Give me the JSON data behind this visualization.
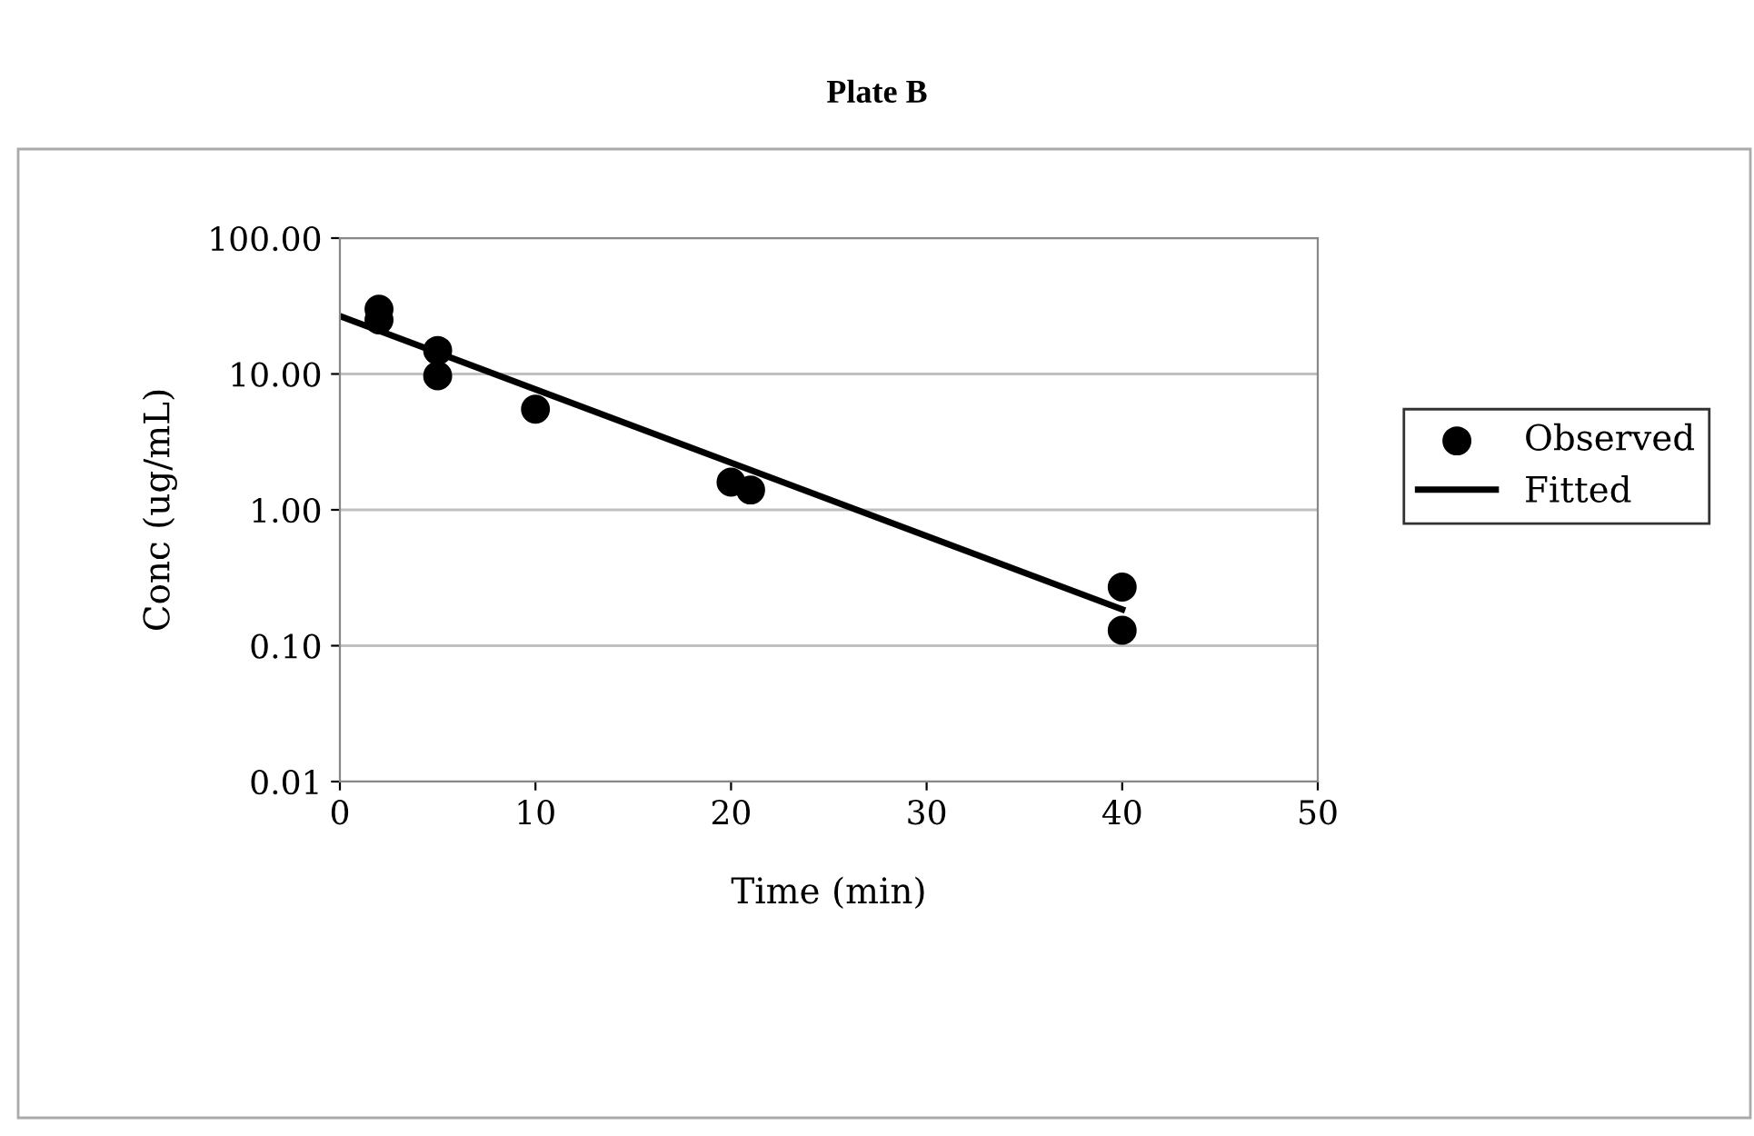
{
  "chart_data": {
    "type": "scatter",
    "title": "Plate B",
    "xlabel": "Time (min)",
    "ylabel": "Conc (ug/mL)",
    "log": "y",
    "grid": "y",
    "legend": "right",
    "xlim": [
      0,
      50
    ],
    "xticks": [
      0,
      10,
      20,
      30,
      40,
      50
    ],
    "ylim": [
      0.01,
      100
    ],
    "yticks": [
      {
        "value": 0.01,
        "label": "0.01"
      },
      {
        "value": 0.1,
        "label": "0.10"
      },
      {
        "value": 1,
        "label": "1.00"
      },
      {
        "value": 10,
        "label": "10.00"
      },
      {
        "value": 100,
        "label": "100.00"
      }
    ],
    "series": [
      {
        "name": "Observed",
        "color": "#000000",
        "marker": "circle",
        "x": [
          2,
          2,
          5,
          5,
          10,
          20,
          21,
          40,
          40
        ],
        "values": [
          30,
          25,
          14.9,
          9.7,
          5.5,
          1.6,
          1.4,
          0.27,
          0.13
        ]
      },
      {
        "name": "Fitted",
        "type": "line",
        "color": "#000000",
        "marker": "none",
        "line_style": "solid",
        "x": [
          0,
          40
        ],
        "values": [
          26.7,
          0.185
        ]
      }
    ]
  }
}
